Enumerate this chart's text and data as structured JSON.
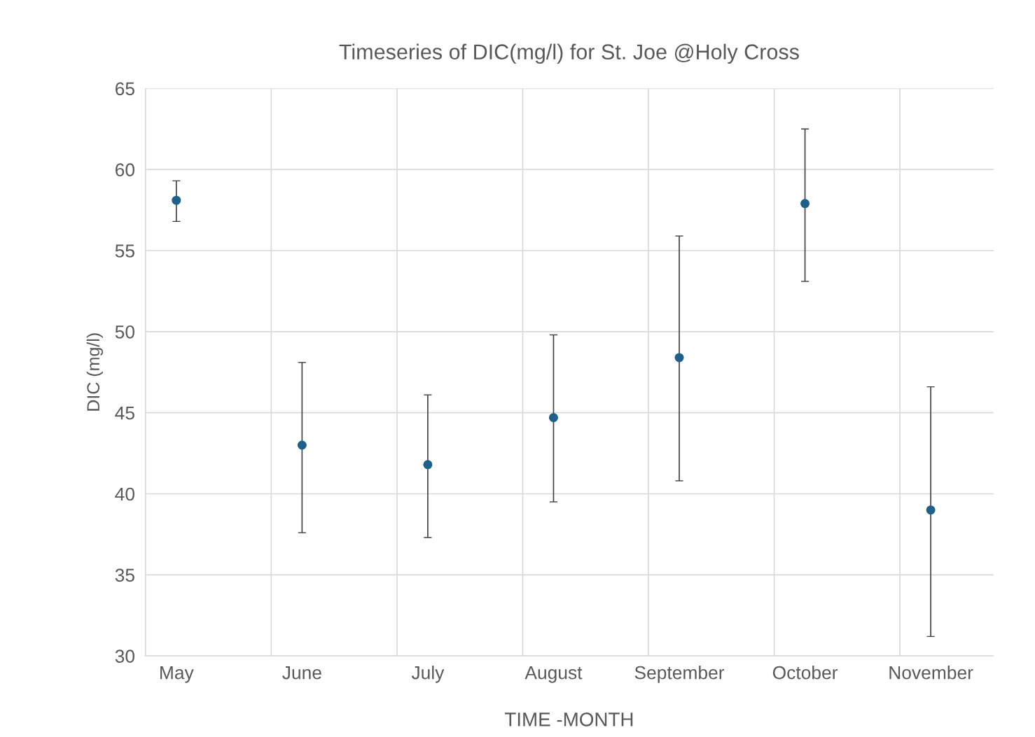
{
  "chart_data": {
    "type": "scatter",
    "title": "Timeseries of DIC(mg/l) for St. Joe @Holy Cross",
    "xlabel": "TIME -MONTH",
    "ylabel": "DIC (mg/l)",
    "categories": [
      "May",
      "June",
      "July",
      "August",
      "September",
      "October",
      "November"
    ],
    "series": [
      {
        "color": "#1f5f8b",
        "values": [
          58.1,
          43.0,
          41.8,
          44.7,
          48.4,
          57.9,
          39.0
        ],
        "errors": [
          [
            56.8,
            59.3
          ],
          [
            37.6,
            48.1
          ],
          [
            37.3,
            46.1
          ],
          [
            39.5,
            49.8
          ],
          [
            40.8,
            55.9
          ],
          [
            53.1,
            62.5
          ],
          [
            31.2,
            46.6
          ]
        ]
      }
    ],
    "ylim": [
      30,
      65
    ],
    "yticks": [
      30,
      35,
      40,
      45,
      50,
      55,
      60,
      65
    ],
    "grid": true,
    "marker": "circle",
    "legend": false
  }
}
